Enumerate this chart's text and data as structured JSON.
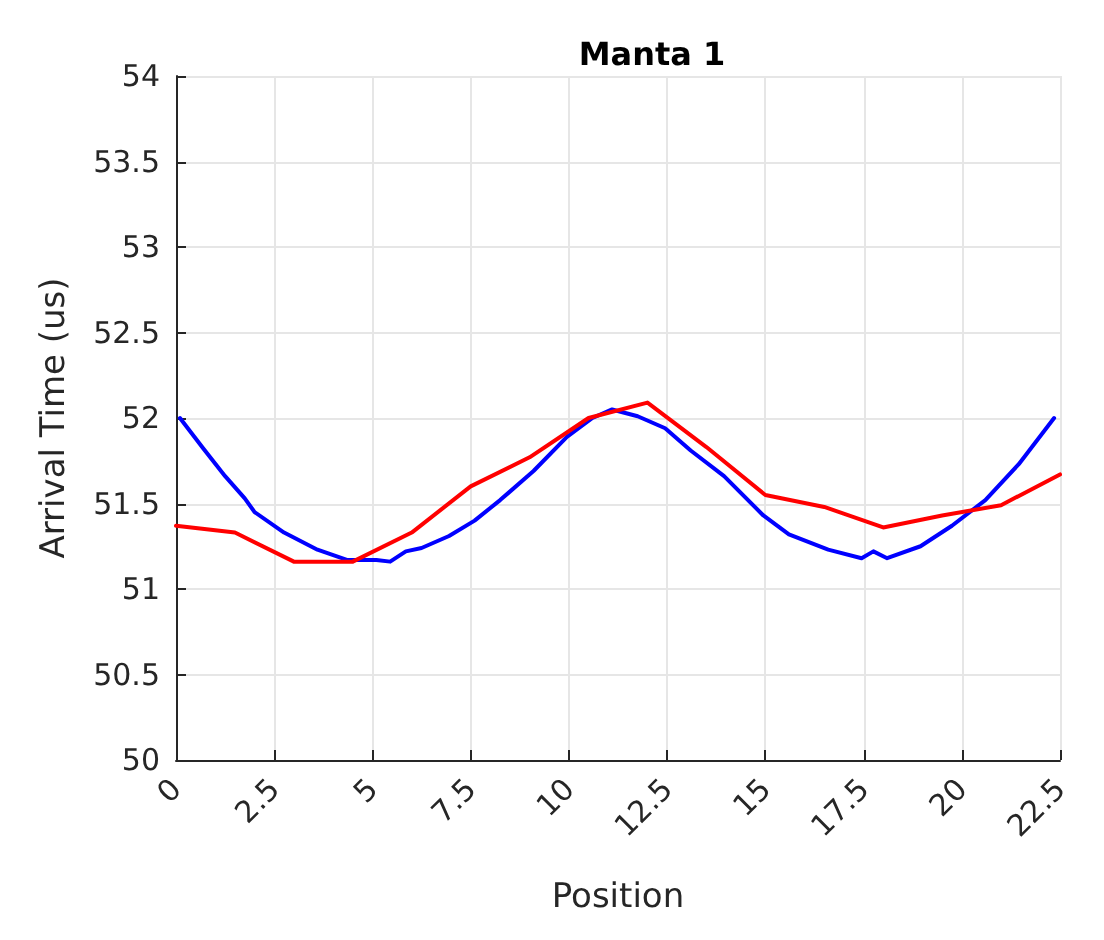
{
  "chart_data": {
    "type": "line",
    "title": "Manta 1",
    "xlabel": "Position",
    "ylabel": "Arrival Time (us)",
    "xlim": [
      0,
      22.5
    ],
    "xticks": [
      0,
      2.5,
      5,
      7.5,
      10,
      12.5,
      15,
      17.5,
      20,
      22.5
    ],
    "ylim": [
      50,
      54
    ],
    "yticks": [
      50,
      50.5,
      51,
      51.5,
      52,
      52.5,
      53,
      53.5,
      54
    ],
    "grid": true,
    "marker": "none",
    "line_style": "solid",
    "series": [
      {
        "color": "#0000ff",
        "x": [
          0.1,
          0.7,
          1.25,
          1.75,
          2.0,
          2.75,
          3.6,
          4.35,
          5.1,
          5.45,
          5.85,
          6.25,
          6.95,
          7.6,
          8.25,
          9.1,
          9.95,
          10.6,
          11.1,
          11.75,
          12.45,
          13.1,
          13.95,
          14.95,
          15.6,
          16.6,
          17.45,
          17.75,
          18.1,
          18.95,
          19.75,
          20.6,
          21.45,
          22.35
        ],
        "values": [
          52.0,
          51.82,
          51.66,
          51.53,
          51.45,
          51.33,
          51.23,
          51.17,
          51.17,
          51.16,
          51.22,
          51.24,
          51.31,
          51.4,
          51.52,
          51.69,
          51.89,
          52.0,
          52.05,
          52.01,
          51.94,
          51.81,
          51.66,
          51.43,
          51.32,
          51.23,
          51.18,
          51.22,
          51.18,
          51.25,
          51.37,
          51.52,
          51.73,
          52.0
        ]
      },
      {
        "color": "#ff0000",
        "x": [
          0,
          1.5,
          3,
          4.5,
          6,
          7.5,
          9,
          10.5,
          12,
          13.5,
          15,
          16.5,
          18,
          19.5,
          21,
          22.5
        ],
        "values": [
          51.37,
          51.33,
          51.16,
          51.16,
          51.33,
          51.6,
          51.77,
          52.0,
          52.09,
          51.83,
          51.55,
          51.48,
          51.36,
          51.43,
          51.49,
          51.67
        ]
      }
    ]
  }
}
